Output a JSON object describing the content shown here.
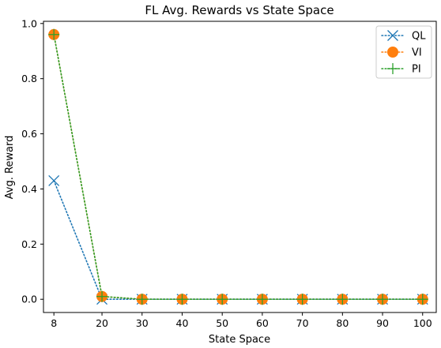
{
  "chart_data": {
    "type": "line",
    "title": "FL Avg. Rewards vs State Space",
    "xlabel": "State Space",
    "ylabel": "Avg. Reward",
    "categories": [
      "8",
      "20",
      "30",
      "40",
      "50",
      "60",
      "70",
      "80",
      "90",
      "100"
    ],
    "x": [
      8,
      20,
      30,
      40,
      50,
      60,
      70,
      80,
      90,
      100
    ],
    "yticks": [
      "0.0",
      "0.2",
      "0.4",
      "0.6",
      "0.8",
      "1.0"
    ],
    "ylim": [
      -0.048,
      1.008
    ],
    "xlim": [
      5.4,
      103.4
    ],
    "grid": false,
    "legend_position": "top-right",
    "series": [
      {
        "name": "QL",
        "marker": "x",
        "color": "#1f77b4",
        "values": [
          0.43,
          0.0,
          0.0,
          0.0,
          0.0,
          0.0,
          0.0,
          0.0,
          0.0,
          0.0
        ]
      },
      {
        "name": "VI",
        "marker": "o",
        "color": "#ff7f0e",
        "values": [
          0.96,
          0.01,
          0.0,
          0.0,
          0.0,
          0.0,
          0.0,
          0.0,
          0.0,
          0.0
        ]
      },
      {
        "name": "PI",
        "marker": "+",
        "color": "#2ca02c",
        "values": [
          0.96,
          0.01,
          0.0,
          0.0,
          0.0,
          0.0,
          0.0,
          0.0,
          0.0,
          0.0
        ]
      }
    ]
  }
}
